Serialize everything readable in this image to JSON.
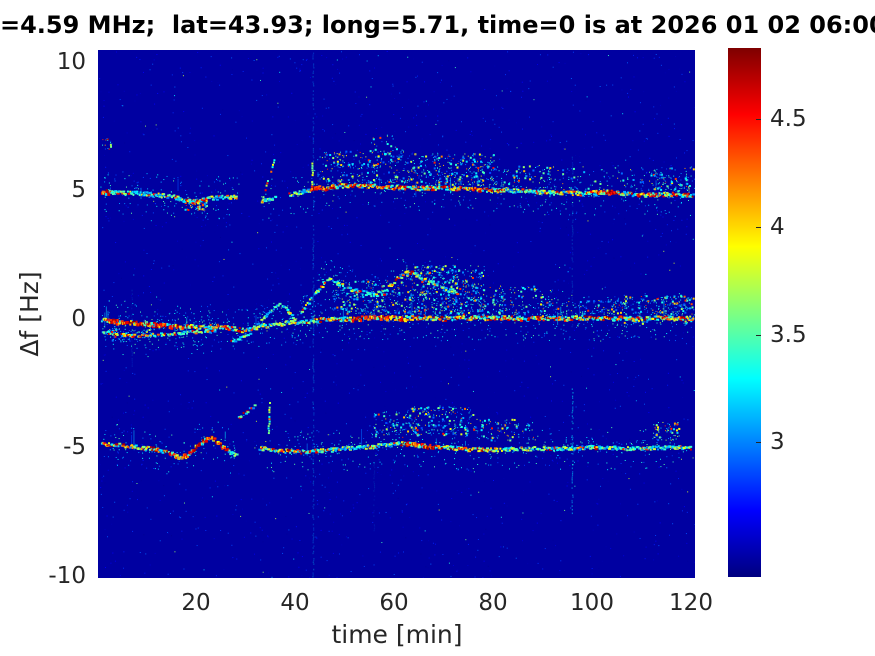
{
  "figure": {
    "title": "=4.59 MHz;  lat=43.93; long=5.71, time=0 is at 2026 01 02 06:00",
    "xlabel": "time [min]",
    "ylabel": "Δf [Hz]",
    "x_ticks": [
      20,
      40,
      60,
      80,
      100,
      120
    ],
    "y_ticks": [
      10,
      5,
      0,
      -5,
      -10
    ],
    "colorbar_ticks": [
      4.5,
      4,
      3.5,
      3
    ],
    "colors": {
      "background": "#ffffff",
      "plot_min_blue": "#0000a0",
      "tick_text": "#262626",
      "title_text": "#000000"
    }
  },
  "chart_data": {
    "type": "heatmap",
    "subtype": "doppler-spectrogram",
    "title": "=4.59 MHz;  lat=43.93; long=5.71, time=0 is at 2026 01 02 06:00",
    "xlabel": "time [min]",
    "ylabel": "Δf [Hz]",
    "colormap": "jet",
    "grid": false,
    "legend": "colorbar-right",
    "xlim": [
      -0.5,
      120.8
    ],
    "ylim": [
      -10.08,
      10.47
    ],
    "clim": [
      2.38,
      4.83
    ],
    "x_ticks": [
      20,
      40,
      60,
      80,
      100,
      120
    ],
    "y_ticks": [
      10,
      5,
      0,
      -5,
      -10
    ],
    "colorbar_ticks": [
      3,
      3.5,
      4,
      4.5
    ],
    "background_value": 2.46,
    "noise": {
      "sparse": 1700,
      "bright": 150
    },
    "traces": [
      {
        "name": "upper-doppler-line-+5Hz",
        "points": [
          [
            0.3,
            4.95
          ],
          [
            4,
            4.9
          ],
          [
            8,
            4.88
          ],
          [
            12,
            4.82
          ],
          [
            15,
            4.75
          ],
          [
            17,
            4.62
          ],
          [
            19,
            4.55
          ],
          [
            20.5,
            4.6
          ],
          [
            22,
            4.68
          ],
          [
            24,
            4.72
          ],
          [
            26,
            4.75
          ],
          [
            27.8,
            4.72
          ],
          [
            32.8,
            4.6
          ],
          [
            34,
            4.68
          ],
          [
            36,
            4.75
          ],
          [
            38.3,
            4.82
          ],
          [
            40,
            4.9
          ],
          [
            42,
            5.0
          ],
          [
            44,
            5.08
          ],
          [
            46,
            5.12
          ],
          [
            49,
            5.18
          ],
          [
            52,
            5.2
          ],
          [
            55,
            5.17
          ],
          [
            58,
            5.12
          ],
          [
            62,
            5.1
          ],
          [
            66,
            5.08
          ],
          [
            70,
            5.1
          ],
          [
            74,
            5.06
          ],
          [
            78,
            5.02
          ],
          [
            82,
            5.0
          ],
          [
            86,
            4.97
          ],
          [
            90,
            4.92
          ],
          [
            94,
            4.9
          ],
          [
            98,
            4.87
          ],
          [
            100.5,
            4.92
          ],
          [
            102.5,
            4.97
          ],
          [
            104.5,
            4.9
          ],
          [
            108,
            4.85
          ],
          [
            112,
            4.82
          ],
          [
            116,
            4.85
          ],
          [
            120.5,
            4.8
          ]
        ],
        "gaps": [
          [
            27.9,
            32.7
          ],
          [
            35.8,
            38.2
          ]
        ],
        "hot": [
          [
            0.3,
            2.2
          ],
          [
            42.5,
            47
          ],
          [
            100.5,
            104.5
          ]
        ],
        "warm": [
          [
            17,
            21.5
          ],
          [
            47,
            82
          ],
          [
            92,
            100.5
          ],
          [
            104.5,
            120.5
          ]
        ],
        "spurs": [
          {
            "t": 32.9,
            "f0": 4.6,
            "f1": 6.3,
            "drift": 1.5
          },
          {
            "t": 43.0,
            "f0": 5.1,
            "f1": 6.15,
            "drift": 0.15
          }
        ],
        "fringe": 380,
        "skip": 0.1,
        "jitter": 0.15,
        "hair": 0.012
      },
      {
        "name": "middle-doppler-line-0Hz",
        "points": [
          [
            0.3,
            -0.05
          ],
          [
            4,
            -0.12
          ],
          [
            8,
            -0.18
          ],
          [
            12,
            -0.25
          ],
          [
            16,
            -0.3
          ],
          [
            20,
            -0.32
          ],
          [
            24,
            -0.3
          ],
          [
            27,
            -0.38
          ],
          [
            29,
            -0.45
          ],
          [
            31,
            -0.35
          ],
          [
            33,
            -0.28
          ],
          [
            35,
            -0.22
          ],
          [
            37,
            -0.18
          ],
          [
            39,
            -0.12
          ],
          [
            41,
            -0.1
          ],
          [
            43,
            -0.08
          ],
          [
            45,
            -0.05
          ],
          [
            47,
            -0.02
          ],
          [
            50,
            0.0
          ],
          [
            54,
            0.05
          ],
          [
            58,
            0.05
          ],
          [
            62,
            0.03
          ],
          [
            66,
            0.05
          ],
          [
            70,
            0.0
          ],
          [
            74,
            0.05
          ],
          [
            78,
            0.03
          ],
          [
            82,
            0.05
          ],
          [
            86,
            0.0
          ],
          [
            90,
            0.03
          ],
          [
            94,
            0.0
          ],
          [
            98,
            0.05
          ],
          [
            102,
            0.0
          ],
          [
            106,
            0.03
          ],
          [
            110,
            0.0
          ],
          [
            114,
            0.05
          ],
          [
            118,
            0.0
          ],
          [
            120.5,
            0.02
          ]
        ],
        "gaps": [],
        "hot": [
          [
            0.5,
            19
          ],
          [
            51,
            62
          ]
        ],
        "warm": [
          [
            19,
            30
          ],
          [
            44,
            51
          ],
          [
            62,
            120.5
          ]
        ],
        "spurs": [],
        "fringe": 550,
        "skip": 0.08,
        "jitter": 0.16,
        "hair": 0.03
      },
      {
        "name": "lower-doppler-line--5Hz",
        "points": [
          [
            0.3,
            -4.85
          ],
          [
            4,
            -4.92
          ],
          [
            8,
            -5.0
          ],
          [
            11,
            -5.08
          ],
          [
            14,
            -5.22
          ],
          [
            16,
            -5.35
          ],
          [
            17.5,
            -5.32
          ],
          [
            19,
            -5.05
          ],
          [
            21,
            -4.75
          ],
          [
            22.3,
            -4.62
          ],
          [
            23.5,
            -4.72
          ],
          [
            25,
            -5.0
          ],
          [
            26.5,
            -5.22
          ],
          [
            27.6,
            -5.3
          ],
          [
            32.4,
            -5.05
          ],
          [
            35,
            -5.1
          ],
          [
            38,
            -5.15
          ],
          [
            41,
            -5.18
          ],
          [
            44,
            -5.15
          ],
          [
            47,
            -5.1
          ],
          [
            50,
            -5.05
          ],
          [
            53,
            -5.0
          ],
          [
            56,
            -4.95
          ],
          [
            59,
            -4.9
          ],
          [
            61.5,
            -4.85
          ],
          [
            64,
            -4.9
          ],
          [
            67,
            -4.95
          ],
          [
            70,
            -5.0
          ],
          [
            73,
            -5.05
          ],
          [
            76,
            -5.1
          ],
          [
            80,
            -5.1
          ],
          [
            84,
            -5.07
          ],
          [
            88,
            -5.05
          ],
          [
            92,
            -5.05
          ],
          [
            96,
            -5.04
          ],
          [
            100,
            -5.0
          ],
          [
            104,
            -5.02
          ],
          [
            108,
            -5.05
          ],
          [
            112,
            -5.02
          ],
          [
            116,
            -5.0
          ],
          [
            120,
            -5.04
          ]
        ],
        "gaps": [
          [
            27.7,
            32.3
          ]
        ],
        "hot": [
          [
            14,
            26
          ],
          [
            61,
            68
          ]
        ],
        "warm": [
          [
            0.3,
            14
          ],
          [
            33,
            44
          ],
          [
            68,
            82
          ]
        ],
        "spurs": [
          {
            "t": 34.2,
            "f0": -4.4,
            "f1": -3.15,
            "drift": 0.2
          }
        ],
        "fringe": 320,
        "skip": 0.12,
        "jitter": 0.14,
        "hair": 0.012
      },
      {
        "name": "middle-secondary-early-line",
        "points": [
          [
            0.3,
            -0.5
          ],
          [
            4,
            -0.6
          ],
          [
            8,
            -0.66
          ],
          [
            12,
            -0.62
          ],
          [
            16,
            -0.56
          ],
          [
            20,
            -0.5
          ],
          [
            23.5,
            -0.45
          ]
        ],
        "gaps": [],
        "hot": [],
        "warm": [
          [
            2,
            14
          ]
        ],
        "spurs": [],
        "fringe": 60,
        "skip": 0.35,
        "jitter": 0.12,
        "hair": 0.0
      },
      {
        "name": "middle-small-bump",
        "points": [
          [
            31.9,
            -0.22
          ],
          [
            33.5,
            0.1
          ],
          [
            35,
            0.38
          ],
          [
            36.4,
            0.6
          ],
          [
            37.6,
            0.42
          ],
          [
            38.8,
            0.15
          ],
          [
            39.6,
            -0.02
          ]
        ],
        "gaps": [],
        "hot": [],
        "warm": [],
        "spurs": [],
        "fringe": 0,
        "skip": 0.4,
        "jitter": 0.1,
        "hair": 0.0
      },
      {
        "name": "middle-peak-arc",
        "points": [
          [
            40.8,
            0.3
          ],
          [
            42.5,
            0.7
          ],
          [
            44.5,
            1.2
          ],
          [
            46.3,
            1.58
          ],
          [
            48,
            1.42
          ],
          [
            50,
            1.2
          ],
          [
            52.3,
            1.05
          ],
          [
            55,
            0.95
          ],
          [
            57.5,
            1.0
          ],
          [
            59.5,
            1.4
          ],
          [
            61.5,
            1.75
          ],
          [
            63,
            1.85
          ],
          [
            64.5,
            1.7
          ],
          [
            66.5,
            1.45
          ],
          [
            68.5,
            1.3
          ],
          [
            70.5,
            1.15
          ],
          [
            72.5,
            1.0
          ]
        ],
        "gaps": [],
        "hot": [],
        "warm": [
          [
            59,
            64.5
          ]
        ],
        "spurs": [],
        "fringe": 120,
        "skip": 0.3,
        "jitter": 0.18,
        "hair": 0.0
      },
      {
        "name": "middle-under-diagonal",
        "points": [
          [
            25.8,
            -0.95
          ],
          [
            27.5,
            -0.82
          ],
          [
            29.5,
            -0.62
          ],
          [
            30.5,
            -0.55
          ]
        ],
        "gaps": [],
        "hot": [],
        "warm": [],
        "spurs": [],
        "fringe": 0,
        "skip": 0.45,
        "jitter": 0.1,
        "hair": 0.0
      },
      {
        "name": "lower-diagonal-dashes",
        "points": [
          [
            27.8,
            -3.88
          ],
          [
            29.5,
            -3.65
          ],
          [
            31.5,
            -3.35
          ]
        ],
        "gaps": [],
        "hot": [],
        "warm": [],
        "spurs": [],
        "fringe": 0,
        "skip": 0.5,
        "jitter": 0.12,
        "hair": 0.0
      }
    ],
    "clouds": [
      {
        "t0": 44,
        "t1": 62,
        "f0": 5.3,
        "f1": 6.6,
        "density": 0.3,
        "hot": false
      },
      {
        "t0": 62,
        "t1": 80,
        "f0": 5.2,
        "f1": 6.45,
        "density": 0.42,
        "hot": false
      },
      {
        "t0": 80,
        "t1": 92,
        "f0": 5.1,
        "f1": 6.0,
        "density": 0.22,
        "hot": false
      },
      {
        "t0": 92,
        "t1": 112,
        "f0": 5.0,
        "f1": 5.9,
        "density": 0.1,
        "hot": false
      },
      {
        "t0": 112,
        "t1": 120.8,
        "f0": 5.0,
        "f1": 5.9,
        "density": 0.4,
        "hot": false
      },
      {
        "t0": 17,
        "t1": 21.5,
        "f0": 4.25,
        "f1": 4.7,
        "density": 1.5,
        "hot": true
      },
      {
        "t0": 0.3,
        "t1": 2,
        "f0": 6.6,
        "f1": 7.1,
        "density": 0.6,
        "hot": true
      },
      {
        "t0": 55,
        "t1": 62,
        "f0": 6.0,
        "f1": 7.2,
        "density": 0.15,
        "hot": false
      },
      {
        "t0": 47,
        "t1": 62,
        "f0": 0.2,
        "f1": 1.5,
        "density": 0.35,
        "hot": false
      },
      {
        "t0": 62,
        "t1": 78,
        "f0": 0.15,
        "f1": 2.1,
        "density": 0.5,
        "hot": false
      },
      {
        "t0": 78,
        "t1": 92,
        "f0": 0.1,
        "f1": 1.3,
        "density": 0.28,
        "hot": false
      },
      {
        "t0": 92,
        "t1": 106,
        "f0": 0.05,
        "f1": 0.8,
        "density": 0.22,
        "hot": false
      },
      {
        "t0": 106,
        "t1": 120.8,
        "f0": -0.15,
        "f1": 0.95,
        "density": 0.4,
        "hot": false
      },
      {
        "t0": 0.5,
        "t1": 10,
        "f0": -0.85,
        "f1": -0.35,
        "density": 0.3,
        "hot": false
      },
      {
        "t0": 55,
        "t1": 62,
        "f0": -4.6,
        "f1": -3.6,
        "density": 0.35,
        "hot": false
      },
      {
        "t0": 62,
        "t1": 76,
        "f0": -4.5,
        "f1": -3.4,
        "density": 0.42,
        "hot": false
      },
      {
        "t0": 76,
        "t1": 88,
        "f0": -4.7,
        "f1": -3.85,
        "density": 0.26,
        "hot": false
      },
      {
        "t0": 112,
        "t1": 117.5,
        "f0": -4.7,
        "f1": -4.0,
        "density": 0.55,
        "hot": false
      }
    ],
    "streaks": [
      {
        "t": 43.15,
        "f0": -10.0,
        "f1": 10.4,
        "alpha": 0.3,
        "value": 2.95
      },
      {
        "t": 95.8,
        "f0": -7.6,
        "f1": -2.6,
        "alpha": 0.5,
        "value": 3.05
      },
      {
        "t": 95.8,
        "f0": -0.4,
        "f1": 6.4,
        "alpha": 0.2,
        "value": 2.95
      },
      {
        "t": 6.3,
        "f0": -1.8,
        "f1": 1.2,
        "alpha": 0.14,
        "value": 2.9
      },
      {
        "t": 55.5,
        "f0": -8.2,
        "f1": -5.6,
        "alpha": 0.12,
        "value": 2.9
      }
    ]
  }
}
